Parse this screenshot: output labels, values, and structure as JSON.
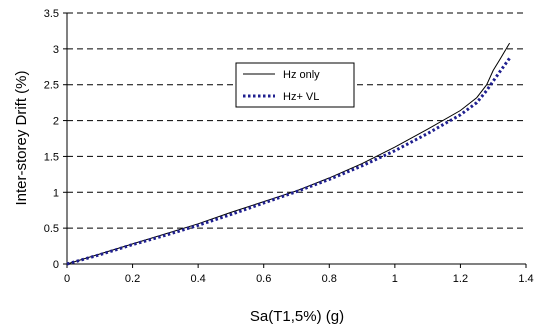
{
  "chart_data": {
    "type": "line",
    "title": "",
    "xlabel": "Sa(T1,5%) (g)",
    "ylabel": "Inter-storey Drift (%)",
    "xlim": [
      0,
      1.4
    ],
    "ylim": [
      0,
      3.5
    ],
    "xticks": [
      "0",
      "0.2",
      "0.4",
      "0.6",
      "0.8",
      "1",
      "1.2",
      "1.4"
    ],
    "yticks": [
      "0",
      "0.5",
      "1",
      "1.5",
      "2",
      "2.5",
      "3",
      "3.5"
    ],
    "grid": "horizontal dashed",
    "legend_position": "upper-middle",
    "series": [
      {
        "name": "Hz only",
        "style": "solid",
        "color": "#000000",
        "x": [
          0,
          0.1,
          0.2,
          0.3,
          0.4,
          0.5,
          0.6,
          0.7,
          0.8,
          0.9,
          1.0,
          1.1,
          1.2,
          1.25,
          1.28,
          1.3,
          1.32,
          1.35
        ],
        "y": [
          0,
          0.14,
          0.28,
          0.42,
          0.56,
          0.72,
          0.87,
          1.02,
          1.2,
          1.4,
          1.63,
          1.88,
          2.14,
          2.32,
          2.5,
          2.7,
          2.85,
          3.08
        ]
      },
      {
        "name": "Hz+ VL",
        "style": "dotted",
        "color": "#1f1f8f",
        "x": [
          0,
          0.1,
          0.2,
          0.3,
          0.4,
          0.5,
          0.6,
          0.7,
          0.8,
          0.9,
          1.0,
          1.1,
          1.2,
          1.25,
          1.28,
          1.3,
          1.32,
          1.35
        ],
        "y": [
          0,
          0.13,
          0.27,
          0.4,
          0.54,
          0.69,
          0.85,
          1.01,
          1.18,
          1.37,
          1.58,
          1.82,
          2.08,
          2.25,
          2.42,
          2.55,
          2.68,
          2.87
        ]
      }
    ]
  }
}
